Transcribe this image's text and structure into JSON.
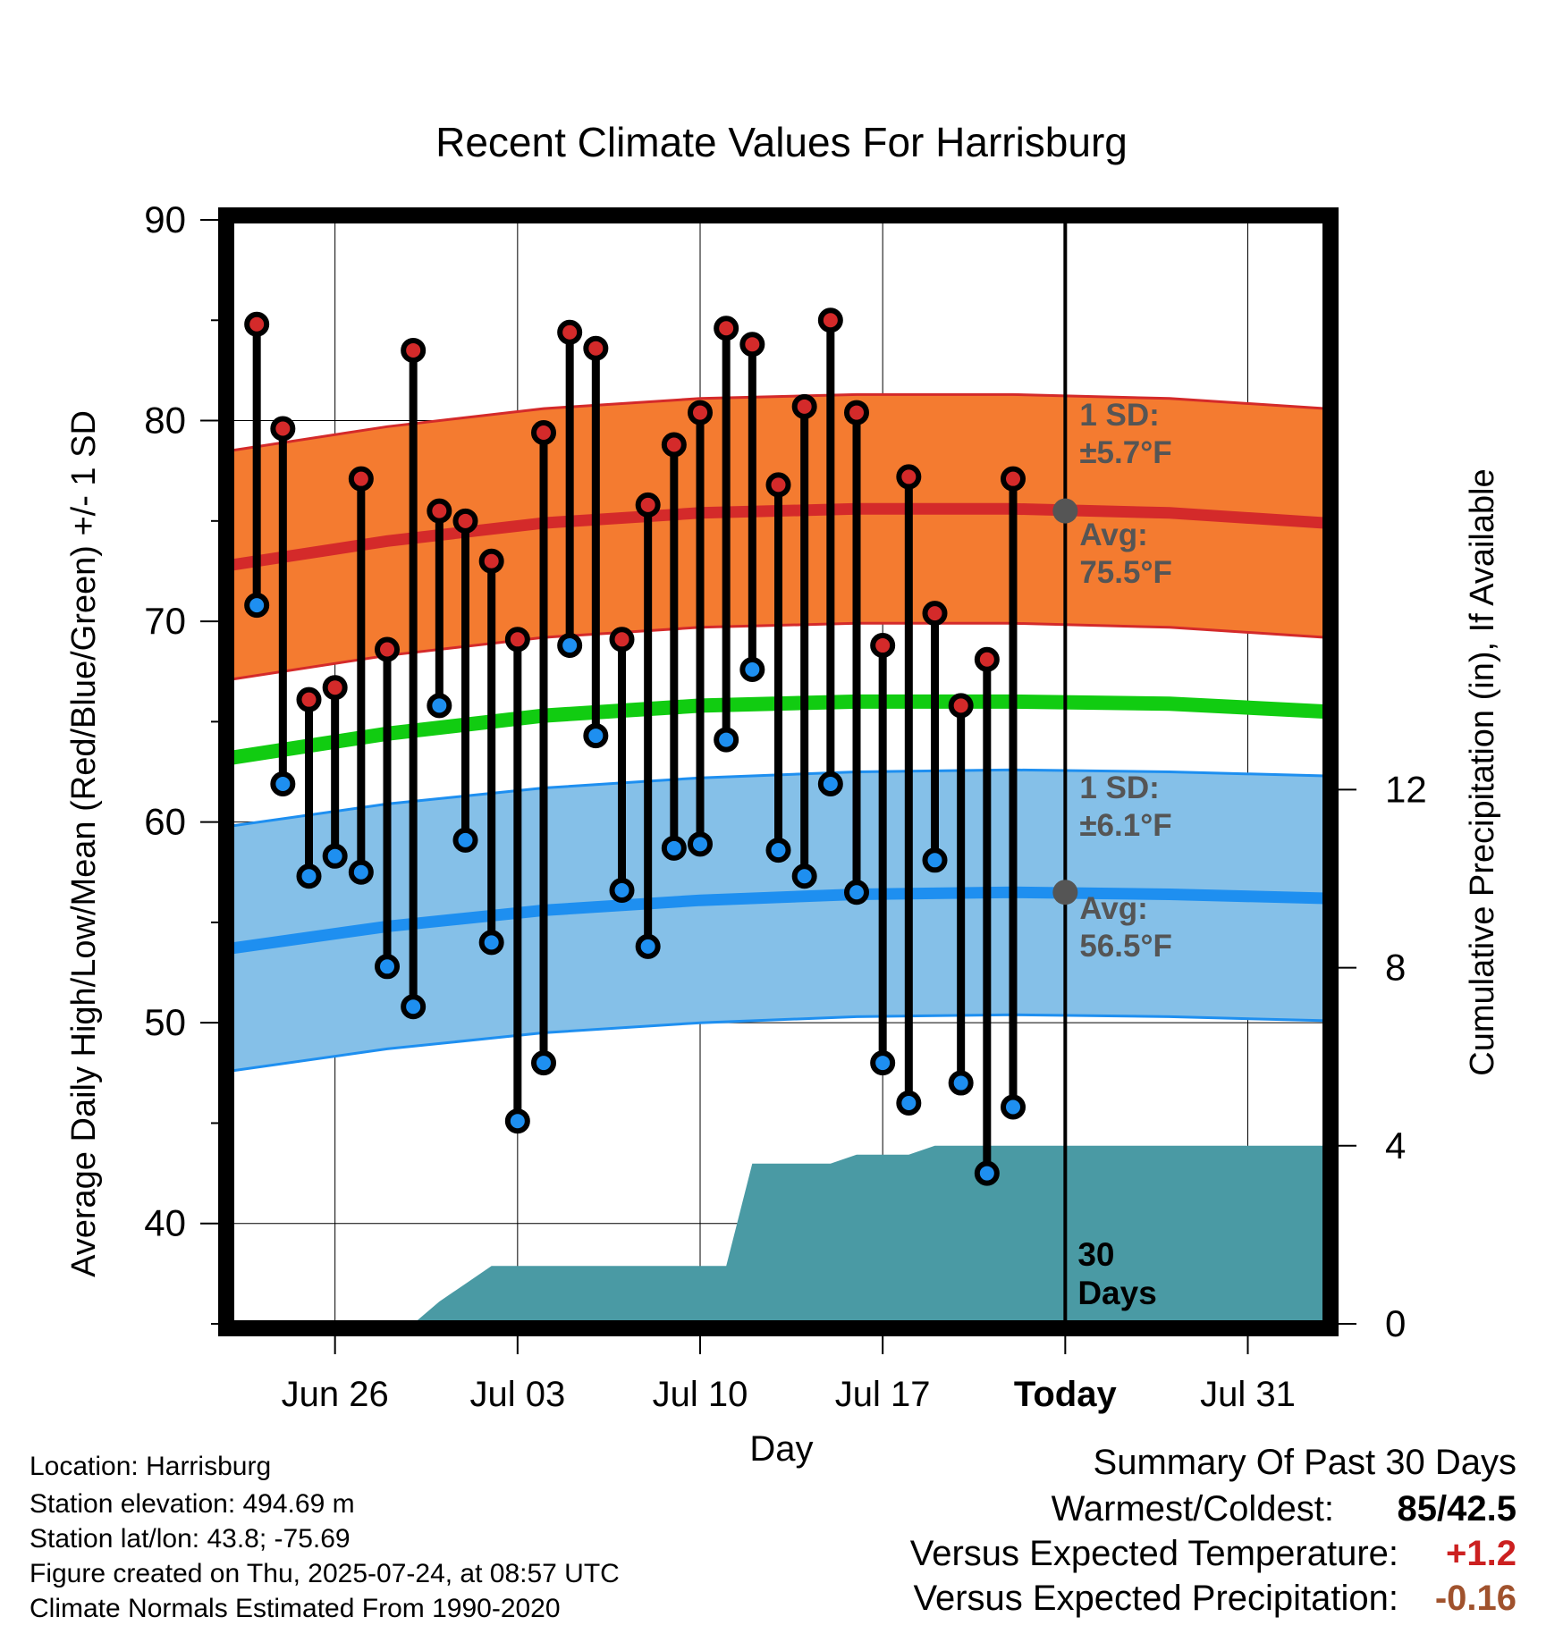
{
  "chart_data": {
    "type": "line",
    "title": "Recent Climate Values For Harrisburg",
    "xlabel": "Day",
    "ylabel": "Average Daily High/Low/Mean (Red/Blue/Green) +/- 1 SD",
    "y2label": "Cumulative Precipitation (in), If Available",
    "x_tick_labels": [
      "Jun 26",
      "Jul 03",
      "Jul 10",
      "Jul 17",
      "Today",
      "Jul 31"
    ],
    "y_ticks": [
      40,
      50,
      60,
      70,
      80,
      90
    ],
    "y2_ticks": [
      0,
      4,
      8,
      12
    ],
    "ylim": [
      35,
      90
    ],
    "y2lim": [
      0,
      24.8
    ],
    "xlim": [
      "2025-06-22",
      "2025-08-03"
    ],
    "today": "2025-07-24",
    "days": [
      "2025-06-23",
      "2025-06-24",
      "2025-06-25",
      "2025-06-26",
      "2025-06-27",
      "2025-06-28",
      "2025-06-29",
      "2025-06-30",
      "2025-07-01",
      "2025-07-02",
      "2025-07-03",
      "2025-07-04",
      "2025-07-05",
      "2025-07-06",
      "2025-07-07",
      "2025-07-08",
      "2025-07-09",
      "2025-07-10",
      "2025-07-11",
      "2025-07-12",
      "2025-07-13",
      "2025-07-14",
      "2025-07-15",
      "2025-07-16",
      "2025-07-17",
      "2025-07-18",
      "2025-07-19",
      "2025-07-20",
      "2025-07-21",
      "2025-07-22",
      "2025-07-23"
    ],
    "observed_high": [
      84.8,
      79.6,
      66.1,
      66.7,
      77.1,
      68.6,
      83.5,
      75.5,
      75.0,
      73.0,
      69.1,
      79.4,
      84.4,
      83.6,
      69.1,
      75.8,
      78.8,
      80.4,
      84.6,
      83.8,
      76.8,
      80.7,
      85.0,
      80.4,
      68.8,
      77.2,
      70.4,
      65.8,
      68.1,
      77.1,
      null
    ],
    "observed_low": [
      70.8,
      61.9,
      57.3,
      58.3,
      57.5,
      52.8,
      50.8,
      65.8,
      59.1,
      54.0,
      45.1,
      48.0,
      68.8,
      64.3,
      56.6,
      53.8,
      58.7,
      58.9,
      64.1,
      67.6,
      58.6,
      57.3,
      61.9,
      56.5,
      48.0,
      46.0,
      58.1,
      47.0,
      42.5,
      45.8,
      null
    ],
    "normal_x": [
      "2025-06-22",
      "2025-06-28",
      "2025-07-04",
      "2025-07-10",
      "2025-07-16",
      "2025-07-22",
      "2025-07-28",
      "2025-08-03"
    ],
    "normal_high_avg": [
      72.8,
      74.0,
      74.9,
      75.4,
      75.6,
      75.6,
      75.4,
      74.9
    ],
    "normal_low_avg": [
      53.7,
      54.8,
      55.6,
      56.1,
      56.4,
      56.5,
      56.4,
      56.2
    ],
    "normal_mean": [
      63.2,
      64.4,
      65.3,
      65.8,
      66.0,
      66.0,
      65.9,
      65.5
    ],
    "high_sd": 5.7,
    "low_sd": 6.1,
    "cumulative_precip": [
      0,
      0,
      0,
      0,
      0,
      0,
      0,
      0.5,
      0.9,
      1.3,
      1.3,
      1.3,
      1.3,
      1.3,
      1.3,
      1.3,
      1.3,
      1.3,
      1.3,
      3.6,
      3.6,
      3.6,
      3.6,
      3.8,
      3.8,
      3.8,
      4.0,
      4.0,
      4.0,
      4.0,
      4.0
    ],
    "annotations": {
      "high_sd_label": "1 SD:",
      "high_sd_value": "±5.7°F",
      "high_avg_label": "Avg:",
      "high_avg_value": "75.5°F",
      "low_sd_label": "1 SD:",
      "low_sd_value": "±6.1°F",
      "low_avg_label": "Avg:",
      "low_avg_value": "56.5°F",
      "window_label_1": "30",
      "window_label_2": "Days"
    },
    "colors": {
      "high": "#d42a2a",
      "high_band": "#f47b30",
      "low": "#1e8ff0",
      "low_band": "#85c0e8",
      "mean": "#11cc11",
      "precip": "#4a9aa4",
      "annotation": "#555555"
    }
  },
  "info": {
    "location": "Location: Harrisburg",
    "elevation": "Station elevation: 494.69 m",
    "latlon": "Station lat/lon: 43.8; -75.69",
    "created": "Figure created on Thu, 2025-07-24, at 08:57 UTC",
    "normals": "Climate Normals Estimated From 1990-2020"
  },
  "summary": {
    "title": "Summary Of Past 30 Days",
    "warm_cold_label": "Warmest/Coldest:",
    "warm_cold_value": "85/42.5",
    "temp_label": "Versus Expected Temperature:",
    "temp_value": "+1.2",
    "precip_label": "Versus Expected Precipitation:",
    "precip_value": "-0.16",
    "temp_color": "#cc2020",
    "precip_color": "#a0522d"
  }
}
